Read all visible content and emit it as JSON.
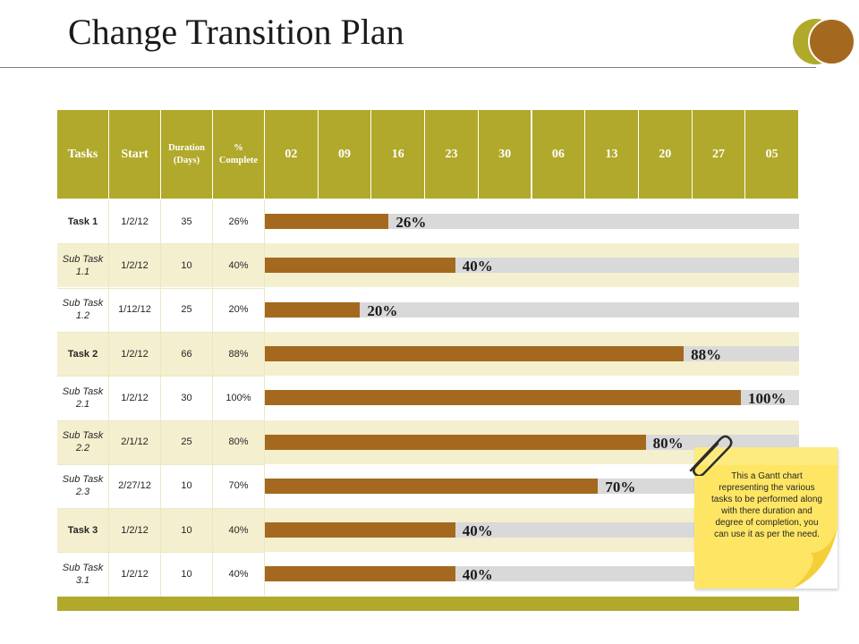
{
  "title": "Change Transition Plan",
  "colors": {
    "accent": "#b1a92b",
    "bar": "#a4691f",
    "track": "#d9d9d9",
    "cream": "#f4efcf",
    "note": "#fee664"
  },
  "chart_data": {
    "type": "table",
    "columns": [
      "Tasks",
      "Start",
      "Duration (Days)",
      "% Complete"
    ],
    "timeline_headers": [
      "02",
      "09",
      "16",
      "23",
      "30",
      "06",
      "13",
      "20",
      "27",
      "05"
    ],
    "rows": [
      {
        "task": "Task 1",
        "start": "1/2/12",
        "duration": "35",
        "complete": "26%",
        "value": 26,
        "main": true
      },
      {
        "task": "Sub Task 1.1",
        "start": "1/2/12",
        "duration": "10",
        "complete": "40%",
        "value": 40,
        "main": false
      },
      {
        "task": "Sub Task 1.2",
        "start": "1/12/12",
        "duration": "25",
        "complete": "20%",
        "value": 20,
        "main": false
      },
      {
        "task": "Task 2",
        "start": "1/2/12",
        "duration": "66",
        "complete": "88%",
        "value": 88,
        "main": true
      },
      {
        "task": "Sub Task 2.1",
        "start": "1/2/12",
        "duration": "30",
        "complete": "100%",
        "value": 100,
        "main": false
      },
      {
        "task": "Sub Task 2.2",
        "start": "2/1/12",
        "duration": "25",
        "complete": "80%",
        "value": 80,
        "main": false
      },
      {
        "task": "Sub Task 2.3",
        "start": "2/27/12",
        "duration": "10",
        "complete": "70%",
        "value": 70,
        "main": false
      },
      {
        "task": "Task 3",
        "start": "1/2/12",
        "duration": "10",
        "complete": "40%",
        "value": 40,
        "main": true
      },
      {
        "task": "Sub Task 3.1",
        "start": "1/2/12",
        "duration": "10",
        "complete": "40%",
        "value": 40,
        "main": false
      }
    ]
  },
  "note": {
    "text": "This a Gantt chart representing the various tasks to be performed along with there duration and degree of completion, you can use it as per the need.",
    "icon": "paperclip-icon"
  }
}
